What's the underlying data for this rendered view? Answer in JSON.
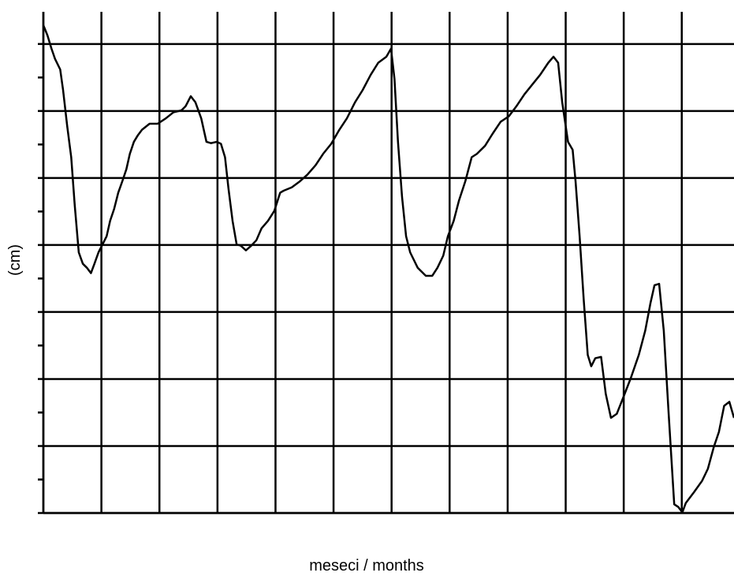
{
  "chart_data": {
    "type": "line",
    "xlabel": "meseci / months",
    "ylabel": "(cm)",
    "color": "#000000",
    "grid": true,
    "xlim": [
      0,
      11.9
    ],
    "xticks": [
      0,
      1,
      2,
      3,
      4,
      5,
      6,
      7,
      8,
      9,
      10,
      11
    ],
    "ylim": [
      0,
      7.48
    ],
    "yticks": [
      0,
      1,
      2,
      3,
      4,
      5,
      6,
      7
    ],
    "yminorticks": [
      0.5,
      1.5,
      2.5,
      3.5,
      4.5,
      5.5,
      6.5
    ],
    "x": [
      0,
      0.07,
      0.14,
      0.2,
      0.29,
      0.34,
      0.41,
      0.48,
      0.54,
      0.61,
      0.68,
      0.75,
      0.82,
      0.88,
      0.95,
      1.02,
      1.09,
      1.15,
      1.22,
      1.29,
      1.36,
      1.43,
      1.49,
      1.56,
      1.63,
      1.7,
      1.83,
      1.97,
      2.11,
      2.24,
      2.38,
      2.45,
      2.54,
      2.62,
      2.72,
      2.81,
      2.89,
      2.99,
      3.06,
      3.13,
      3.19,
      3.26,
      3.33,
      3.4,
      3.49,
      3.57,
      3.67,
      3.76,
      3.87,
      3.98,
      4.08,
      4.14,
      4.28,
      4.42,
      4.55,
      4.69,
      4.82,
      4.96,
      5.1,
      5.23,
      5.37,
      5.5,
      5.64,
      5.77,
      5.91,
      5.99,
      6.05,
      6.11,
      6.18,
      6.25,
      6.32,
      6.45,
      6.59,
      6.7,
      6.79,
      6.89,
      6.97,
      7.07,
      7.16,
      7.27,
      7.38,
      7.47,
      7.61,
      7.74,
      7.88,
      8.02,
      8.15,
      8.29,
      8.42,
      8.56,
      8.7,
      8.79,
      8.87,
      8.94,
      9.04,
      9.12,
      9.17,
      9.24,
      9.31,
      9.38,
      9.44,
      9.51,
      9.61,
      9.69,
      9.78,
      9.88,
      9.99,
      10.12,
      10.26,
      10.37,
      10.46,
      10.53,
      10.61,
      10.69,
      10.77,
      10.87,
      10.94,
      11.01,
      11.07,
      11.21,
      11.35,
      11.45,
      11.55,
      11.64,
      11.73,
      11.82,
      11.9
    ],
    "values": [
      7.28,
      7.13,
      6.93,
      6.78,
      6.62,
      6.31,
      5.78,
      5.31,
      4.6,
      3.89,
      3.72,
      3.66,
      3.58,
      3.72,
      3.89,
      4.01,
      4.13,
      4.36,
      4.54,
      4.78,
      4.95,
      5.13,
      5.36,
      5.54,
      5.64,
      5.72,
      5.81,
      5.81,
      5.89,
      5.98,
      6.01,
      6.07,
      6.22,
      6.13,
      5.89,
      5.54,
      5.52,
      5.54,
      5.51,
      5.31,
      4.84,
      4.36,
      4.01,
      3.99,
      3.92,
      3.98,
      4.07,
      4.25,
      4.36,
      4.51,
      4.78,
      4.81,
      4.86,
      4.95,
      5.05,
      5.19,
      5.36,
      5.51,
      5.72,
      5.89,
      6.13,
      6.31,
      6.54,
      6.72,
      6.81,
      6.93,
      6.48,
      5.54,
      4.72,
      4.13,
      3.89,
      3.66,
      3.54,
      3.54,
      3.66,
      3.84,
      4.13,
      4.36,
      4.66,
      4.95,
      5.31,
      5.36,
      5.48,
      5.66,
      5.84,
      5.92,
      6.07,
      6.25,
      6.39,
      6.54,
      6.72,
      6.81,
      6.72,
      6.13,
      5.54,
      5.42,
      4.95,
      4.13,
      3.19,
      2.36,
      2.19,
      2.31,
      2.33,
      1.78,
      1.42,
      1.48,
      1.72,
      2.01,
      2.36,
      2.72,
      3.13,
      3.4,
      3.42,
      2.72,
      1.54,
      0.13,
      0.09,
      0.01,
      0.15,
      0.31,
      0.48,
      0.66,
      0.98,
      1.21,
      1.6,
      1.66,
      1.42
    ]
  }
}
